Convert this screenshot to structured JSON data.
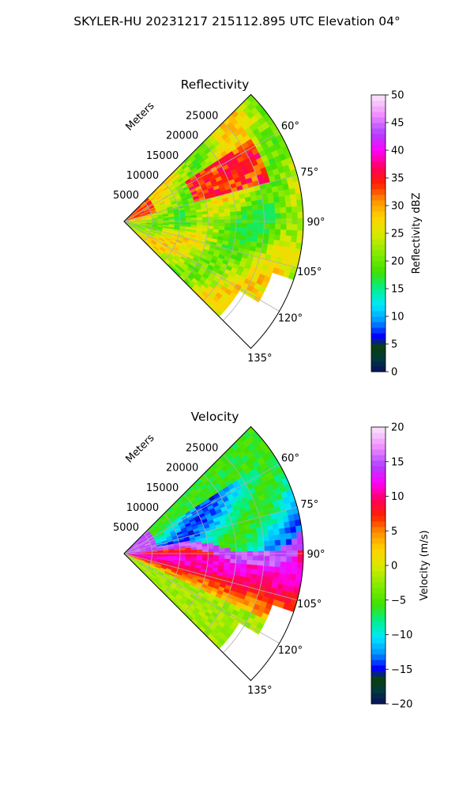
{
  "figure": {
    "title": "SKYLER-HU  20231217  215112.895 UTC Elevation 04°"
  },
  "chart_data": [
    {
      "type": "heatmap",
      "projection": "polar-sector",
      "title": "Reflectivity",
      "theta_range_deg": [
        45,
        135
      ],
      "theta_ticks": [
        60,
        75,
        90,
        105,
        120,
        135
      ],
      "theta_tick_labels": [
        "60°",
        "75°",
        "90°",
        "105°",
        "120°",
        "135°"
      ],
      "r_range_m": [
        0,
        32000
      ],
      "r_ticks": [
        5000,
        10000,
        15000,
        20000,
        25000
      ],
      "r_tick_labels": [
        "5000",
        "10000",
        "15000",
        "20000",
        "25000"
      ],
      "r_axis_label": "Meters",
      "grid": true,
      "data_coverage_r_max_m": 32000,
      "colorbar": {
        "label": "Reflectivity dBZ",
        "range": [
          0,
          50
        ],
        "ticks": [
          0,
          5,
          10,
          15,
          20,
          25,
          30,
          35,
          40,
          45,
          50
        ],
        "tick_labels": [
          "0",
          "5",
          "10",
          "15",
          "20",
          "25",
          "30",
          "35",
          "40",
          "45",
          "50"
        ]
      },
      "field_description_values": {
        "dominant_range_dbz": [
          18,
          30
        ],
        "high_band_theta_deg": [
          62,
          75
        ],
        "high_band_value_dbz": 34
      }
    },
    {
      "type": "heatmap",
      "projection": "polar-sector",
      "title": "Velocity",
      "theta_range_deg": [
        45,
        135
      ],
      "theta_ticks": [
        60,
        75,
        90,
        105,
        120,
        135
      ],
      "theta_tick_labels": [
        "60°",
        "75°",
        "90°",
        "105°",
        "120°",
        "135°"
      ],
      "r_range_m": [
        0,
        32000
      ],
      "r_ticks": [
        5000,
        10000,
        15000,
        20000,
        25000
      ],
      "r_tick_labels": [
        "5000",
        "10000",
        "15000",
        "20000",
        "25000"
      ],
      "r_axis_label": "Meters",
      "grid": true,
      "colorbar": {
        "label": "Velocity (m/s)",
        "range": [
          -20,
          20
        ],
        "ticks": [
          -20,
          -15,
          -10,
          -5,
          0,
          5,
          10,
          15,
          20
        ],
        "tick_labels": [
          "−20",
          "−15",
          "−10",
          "−5",
          "0",
          "5",
          "10",
          "15",
          "20"
        ]
      },
      "field_description_values": {
        "inbound_sector_theta_deg": [
          48,
          84
        ],
        "inbound_value_ms": -10,
        "outbound_max_theta_deg": 97,
        "outbound_max_value_ms": 10,
        "far_south_value_ms": 0
      }
    }
  ],
  "colors": {
    "axis": "#000000",
    "grid": "#b0b0b0",
    "background": "#ffffff"
  }
}
